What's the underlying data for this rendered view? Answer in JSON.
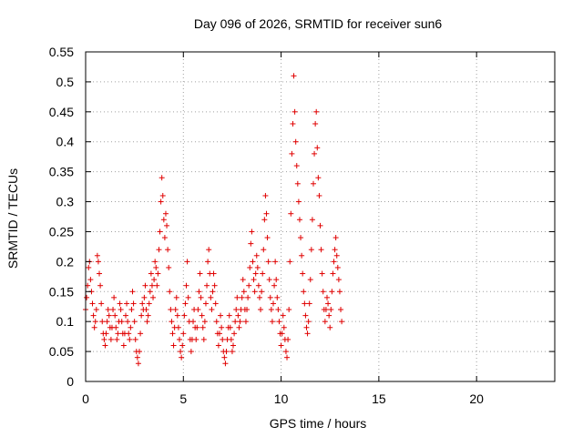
{
  "chart_data": {
    "type": "scatter",
    "title": "Day 096 of 2026, SRMTID for receiver sun6",
    "xlabel": "GPS time / hours",
    "ylabel": "SRMTID / TECUs",
    "xlim": [
      0,
      24
    ],
    "ylim": [
      0,
      0.55
    ],
    "x_ticks": [
      0,
      5,
      10,
      15,
      20
    ],
    "x_tick_labels": [
      "0",
      "5",
      "10",
      "15",
      "20"
    ],
    "y_ticks": [
      0,
      0.05,
      0.1,
      0.15,
      0.2,
      0.25,
      0.3,
      0.35,
      0.4,
      0.45,
      0.5,
      0.55
    ],
    "y_tick_labels": [
      "0",
      "0.05",
      "0.1",
      "0.15",
      "0.2",
      "0.25",
      "0.3",
      "0.35",
      "0.4",
      "0.45",
      "0.5",
      "0.55"
    ],
    "grid": true,
    "marker": "+",
    "color": "#e00000",
    "series": [
      {
        "name": "SRMTID",
        "points": [
          [
            0.0,
            0.12
          ],
          [
            0.05,
            0.14
          ],
          [
            0.1,
            0.16
          ],
          [
            0.15,
            0.19
          ],
          [
            0.2,
            0.2
          ],
          [
            0.25,
            0.17
          ],
          [
            0.3,
            0.15
          ],
          [
            0.35,
            0.13
          ],
          [
            0.4,
            0.11
          ],
          [
            0.45,
            0.09
          ],
          [
            0.5,
            0.1
          ],
          [
            0.55,
            0.12
          ],
          [
            0.6,
            0.21
          ],
          [
            0.65,
            0.2
          ],
          [
            0.7,
            0.18
          ],
          [
            0.75,
            0.16
          ],
          [
            0.8,
            0.13
          ],
          [
            0.85,
            0.1
          ],
          [
            0.9,
            0.08
          ],
          [
            0.95,
            0.07
          ],
          [
            1.0,
            0.06
          ],
          [
            1.05,
            0.08
          ],
          [
            1.1,
            0.1
          ],
          [
            1.15,
            0.12
          ],
          [
            1.2,
            0.11
          ],
          [
            1.25,
            0.09
          ],
          [
            1.3,
            0.07
          ],
          [
            1.35,
            0.09
          ],
          [
            1.4,
            0.12
          ],
          [
            1.45,
            0.14
          ],
          [
            1.5,
            0.11
          ],
          [
            1.55,
            0.09
          ],
          [
            1.6,
            0.07
          ],
          [
            1.65,
            0.08
          ],
          [
            1.7,
            0.1
          ],
          [
            1.75,
            0.13
          ],
          [
            1.8,
            0.12
          ],
          [
            1.85,
            0.1
          ],
          [
            1.9,
            0.08
          ],
          [
            1.95,
            0.06
          ],
          [
            2.0,
            0.08
          ],
          [
            2.05,
            0.11
          ],
          [
            2.1,
            0.13
          ],
          [
            2.15,
            0.1
          ],
          [
            2.2,
            0.08
          ],
          [
            2.25,
            0.07
          ],
          [
            2.3,
            0.09
          ],
          [
            2.35,
            0.12
          ],
          [
            2.4,
            0.15
          ],
          [
            2.45,
            0.13
          ],
          [
            2.5,
            0.1
          ],
          [
            2.55,
            0.07
          ],
          [
            2.6,
            0.05
          ],
          [
            2.65,
            0.04
          ],
          [
            2.7,
            0.03
          ],
          [
            2.75,
            0.05
          ],
          [
            2.8,
            0.08
          ],
          [
            2.85,
            0.11
          ],
          [
            2.9,
            0.13
          ],
          [
            2.95,
            0.12
          ],
          [
            3.0,
            0.14
          ],
          [
            3.05,
            0.16
          ],
          [
            3.1,
            0.12
          ],
          [
            3.15,
            0.1
          ],
          [
            3.2,
            0.11
          ],
          [
            3.25,
            0.13
          ],
          [
            3.3,
            0.15
          ],
          [
            3.35,
            0.18
          ],
          [
            3.4,
            0.16
          ],
          [
            3.45,
            0.14
          ],
          [
            3.5,
            0.17
          ],
          [
            3.55,
            0.2
          ],
          [
            3.6,
            0.19
          ],
          [
            3.65,
            0.16
          ],
          [
            3.7,
            0.18
          ],
          [
            3.75,
            0.22
          ],
          [
            3.8,
            0.25
          ],
          [
            3.85,
            0.3
          ],
          [
            3.9,
            0.34
          ],
          [
            3.95,
            0.31
          ],
          [
            4.0,
            0.27
          ],
          [
            4.05,
            0.24
          ],
          [
            4.1,
            0.28
          ],
          [
            4.15,
            0.26
          ],
          [
            4.2,
            0.22
          ],
          [
            4.25,
            0.19
          ],
          [
            4.3,
            0.15
          ],
          [
            4.35,
            0.12
          ],
          [
            4.4,
            0.1
          ],
          [
            4.45,
            0.08
          ],
          [
            4.5,
            0.06
          ],
          [
            4.55,
            0.09
          ],
          [
            4.6,
            0.12
          ],
          [
            4.65,
            0.14
          ],
          [
            4.7,
            0.11
          ],
          [
            4.75,
            0.09
          ],
          [
            4.8,
            0.07
          ],
          [
            4.85,
            0.05
          ],
          [
            4.9,
            0.04
          ],
          [
            4.95,
            0.06
          ],
          [
            5.0,
            0.08
          ],
          [
            5.05,
            0.11
          ],
          [
            5.1,
            0.13
          ],
          [
            5.15,
            0.16
          ],
          [
            5.2,
            0.2
          ],
          [
            5.25,
            0.14
          ],
          [
            5.3,
            0.1
          ],
          [
            5.35,
            0.07
          ],
          [
            5.4,
            0.05
          ],
          [
            5.45,
            0.07
          ],
          [
            5.5,
            0.1
          ],
          [
            5.55,
            0.12
          ],
          [
            5.6,
            0.09
          ],
          [
            5.65,
            0.07
          ],
          [
            5.7,
            0.09
          ],
          [
            5.75,
            0.12
          ],
          [
            5.8,
            0.15
          ],
          [
            5.85,
            0.18
          ],
          [
            5.9,
            0.14
          ],
          [
            5.95,
            0.11
          ],
          [
            6.0,
            0.09
          ],
          [
            6.05,
            0.07
          ],
          [
            6.1,
            0.1
          ],
          [
            6.15,
            0.13
          ],
          [
            6.2,
            0.16
          ],
          [
            6.25,
            0.2
          ],
          [
            6.3,
            0.22
          ],
          [
            6.35,
            0.18
          ],
          [
            6.4,
            0.14
          ],
          [
            6.45,
            0.12
          ],
          [
            6.5,
            0.15
          ],
          [
            6.55,
            0.18
          ],
          [
            6.6,
            0.16
          ],
          [
            6.65,
            0.13
          ],
          [
            6.7,
            0.1
          ],
          [
            6.75,
            0.08
          ],
          [
            6.8,
            0.06
          ],
          [
            6.85,
            0.08
          ],
          [
            6.9,
            0.11
          ],
          [
            6.95,
            0.09
          ],
          [
            7.0,
            0.07
          ],
          [
            7.05,
            0.05
          ],
          [
            7.1,
            0.04
          ],
          [
            7.15,
            0.03
          ],
          [
            7.2,
            0.05
          ],
          [
            7.25,
            0.07
          ],
          [
            7.3,
            0.09
          ],
          [
            7.35,
            0.11
          ],
          [
            7.4,
            0.09
          ],
          [
            7.45,
            0.07
          ],
          [
            7.5,
            0.05
          ],
          [
            7.55,
            0.06
          ],
          [
            7.6,
            0.08
          ],
          [
            7.65,
            0.1
          ],
          [
            7.7,
            0.12
          ],
          [
            7.75,
            0.14
          ],
          [
            7.8,
            0.11
          ],
          [
            7.85,
            0.09
          ],
          [
            7.9,
            0.1
          ],
          [
            7.95,
            0.12
          ],
          [
            8.0,
            0.14
          ],
          [
            8.05,
            0.17
          ],
          [
            8.1,
            0.15
          ],
          [
            8.15,
            0.12
          ],
          [
            8.2,
            0.1
          ],
          [
            8.25,
            0.12
          ],
          [
            8.3,
            0.14
          ],
          [
            8.35,
            0.16
          ],
          [
            8.4,
            0.19
          ],
          [
            8.45,
            0.23
          ],
          [
            8.5,
            0.25
          ],
          [
            8.55,
            0.2
          ],
          [
            8.6,
            0.17
          ],
          [
            8.65,
            0.15
          ],
          [
            8.7,
            0.18
          ],
          [
            8.75,
            0.21
          ],
          [
            8.8,
            0.19
          ],
          [
            8.85,
            0.16
          ],
          [
            8.9,
            0.14
          ],
          [
            8.95,
            0.12
          ],
          [
            9.0,
            0.15
          ],
          [
            9.05,
            0.18
          ],
          [
            9.1,
            0.22
          ],
          [
            9.15,
            0.27
          ],
          [
            9.2,
            0.31
          ],
          [
            9.25,
            0.28
          ],
          [
            9.3,
            0.24
          ],
          [
            9.35,
            0.2
          ],
          [
            9.4,
            0.17
          ],
          [
            9.45,
            0.14
          ],
          [
            9.5,
            0.12
          ],
          [
            9.55,
            0.1
          ],
          [
            9.6,
            0.13
          ],
          [
            9.65,
            0.16
          ],
          [
            9.7,
            0.2
          ],
          [
            9.75,
            0.17
          ],
          [
            9.8,
            0.14
          ],
          [
            9.85,
            0.12
          ],
          [
            9.9,
            0.1
          ],
          [
            9.95,
            0.08
          ],
          [
            10.0,
            0.06
          ],
          [
            10.05,
            0.08
          ],
          [
            10.1,
            0.11
          ],
          [
            10.15,
            0.09
          ],
          [
            10.2,
            0.07
          ],
          [
            10.25,
            0.05
          ],
          [
            10.3,
            0.04
          ],
          [
            10.35,
            0.07
          ],
          [
            10.4,
            0.12
          ],
          [
            10.45,
            0.2
          ],
          [
            10.5,
            0.28
          ],
          [
            10.55,
            0.38
          ],
          [
            10.6,
            0.43
          ],
          [
            10.65,
            0.51
          ],
          [
            10.7,
            0.45
          ],
          [
            10.75,
            0.4
          ],
          [
            10.8,
            0.36
          ],
          [
            10.85,
            0.33
          ],
          [
            10.9,
            0.3
          ],
          [
            10.95,
            0.27
          ],
          [
            11.0,
            0.24
          ],
          [
            11.05,
            0.21
          ],
          [
            11.1,
            0.18
          ],
          [
            11.15,
            0.15
          ],
          [
            11.2,
            0.13
          ],
          [
            11.25,
            0.11
          ],
          [
            11.3,
            0.09
          ],
          [
            11.35,
            0.08
          ],
          [
            11.4,
            0.1
          ],
          [
            11.45,
            0.13
          ],
          [
            11.5,
            0.17
          ],
          [
            11.55,
            0.22
          ],
          [
            11.6,
            0.27
          ],
          [
            11.65,
            0.33
          ],
          [
            11.7,
            0.38
          ],
          [
            11.75,
            0.43
          ],
          [
            11.8,
            0.45
          ],
          [
            11.85,
            0.39
          ],
          [
            11.9,
            0.34
          ],
          [
            11.95,
            0.31
          ],
          [
            12.0,
            0.26
          ],
          [
            12.05,
            0.22
          ],
          [
            12.1,
            0.18
          ],
          [
            12.15,
            0.15
          ],
          [
            12.2,
            0.12
          ],
          [
            12.25,
            0.1
          ],
          [
            12.3,
            0.12
          ],
          [
            12.35,
            0.14
          ],
          [
            12.4,
            0.13
          ],
          [
            12.45,
            0.11
          ],
          [
            12.5,
            0.09
          ],
          [
            12.55,
            0.12
          ],
          [
            12.6,
            0.15
          ],
          [
            12.65,
            0.18
          ],
          [
            12.7,
            0.2
          ],
          [
            12.75,
            0.22
          ],
          [
            12.8,
            0.24
          ],
          [
            12.85,
            0.21
          ],
          [
            12.9,
            0.19
          ],
          [
            12.95,
            0.17
          ],
          [
            13.0,
            0.15
          ],
          [
            13.05,
            0.12
          ],
          [
            13.1,
            0.1
          ]
        ]
      }
    ]
  }
}
